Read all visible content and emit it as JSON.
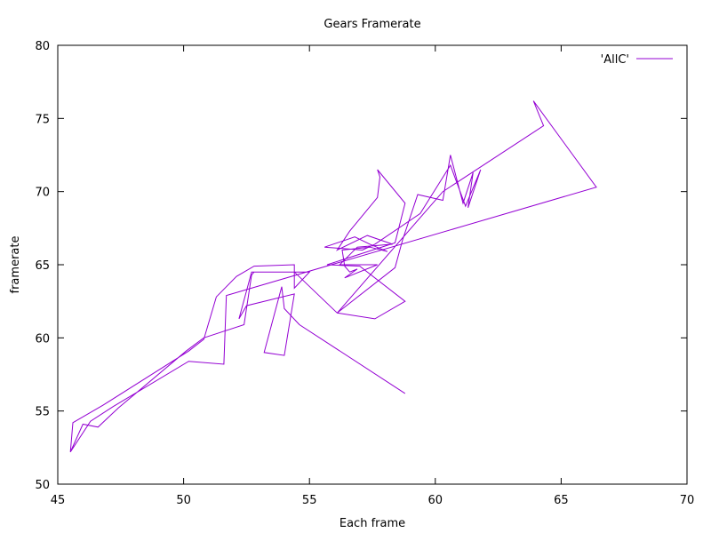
{
  "chart_data": {
    "type": "line",
    "title": "Gears Framerate",
    "xlabel": "Each frame",
    "ylabel": "framerate",
    "xlim": [
      45,
      70
    ],
    "ylim": [
      50,
      80
    ],
    "xticks": [
      "45",
      "50",
      "55",
      "60",
      "65",
      "70"
    ],
    "yticks": [
      "50",
      "55",
      "60",
      "65",
      "70",
      "75",
      "80"
    ],
    "grid": false,
    "legend_position": "top-right",
    "series": [
      {
        "name": "'AllC'",
        "color": "#9400d3",
        "x": [
          58.8,
          54.6,
          54.0,
          53.9,
          53.2,
          54.0,
          54.4,
          52.5,
          52.2,
          52.7,
          53.2,
          54.4,
          56.1,
          57.6,
          58.8,
          57.0,
          55.7,
          58.4,
          58.8,
          57.7,
          57.8,
          57.7,
          56.6,
          56.1,
          57.3,
          58.3,
          56.9,
          56.2,
          57.7,
          56.4,
          56.9,
          56.6,
          56.4,
          56.3,
          57.4,
          58.1,
          57.4,
          56.8,
          55.6,
          57.1,
          57.6,
          59.4,
          60.6,
          61.2,
          61.8,
          61.3,
          61.5,
          61.1,
          60.6,
          60.3,
          59.3,
          58.7,
          58.4,
          56.1,
          60.3,
          64.3,
          63.9,
          66.4,
          51.7,
          51.6,
          50.2,
          47.2,
          46.3,
          45.5,
          45.6,
          46.8,
          50.2,
          50.8,
          51.3,
          52.1,
          52.8,
          54.4,
          54.4,
          55.0,
          52.8,
          52.7,
          52.4,
          50.8,
          50.1,
          47.4,
          46.6,
          46.0,
          45.5
        ],
        "y": [
          56.2,
          60.9,
          62.0,
          63.5,
          59.0,
          58.8,
          63.0,
          62.2,
          61.3,
          64.5,
          64.5,
          64.5,
          61.7,
          61.3,
          62.5,
          64.9,
          65.0,
          66.5,
          69.2,
          71.5,
          71.0,
          69.6,
          67.3,
          66.0,
          67.0,
          66.4,
          66.2,
          65.0,
          65.0,
          64.1,
          64.7,
          64.5,
          64.9,
          66.0,
          66.2,
          65.9,
          66.4,
          66.9,
          66.2,
          66.0,
          66.4,
          68.5,
          71.8,
          69.0,
          71.5,
          68.9,
          71.3,
          69.2,
          72.5,
          69.4,
          69.8,
          66.7,
          64.8,
          61.7,
          70.0,
          74.5,
          76.2,
          70.3,
          62.9,
          58.2,
          58.4,
          55.3,
          54.3,
          52.2,
          54.2,
          55.4,
          59.1,
          59.9,
          62.8,
          64.2,
          64.9,
          65.0,
          63.4,
          64.5,
          64.5,
          64.3,
          60.9,
          60.0,
          59.1,
          55.2,
          53.9,
          54.1,
          52.2
        ]
      }
    ]
  }
}
